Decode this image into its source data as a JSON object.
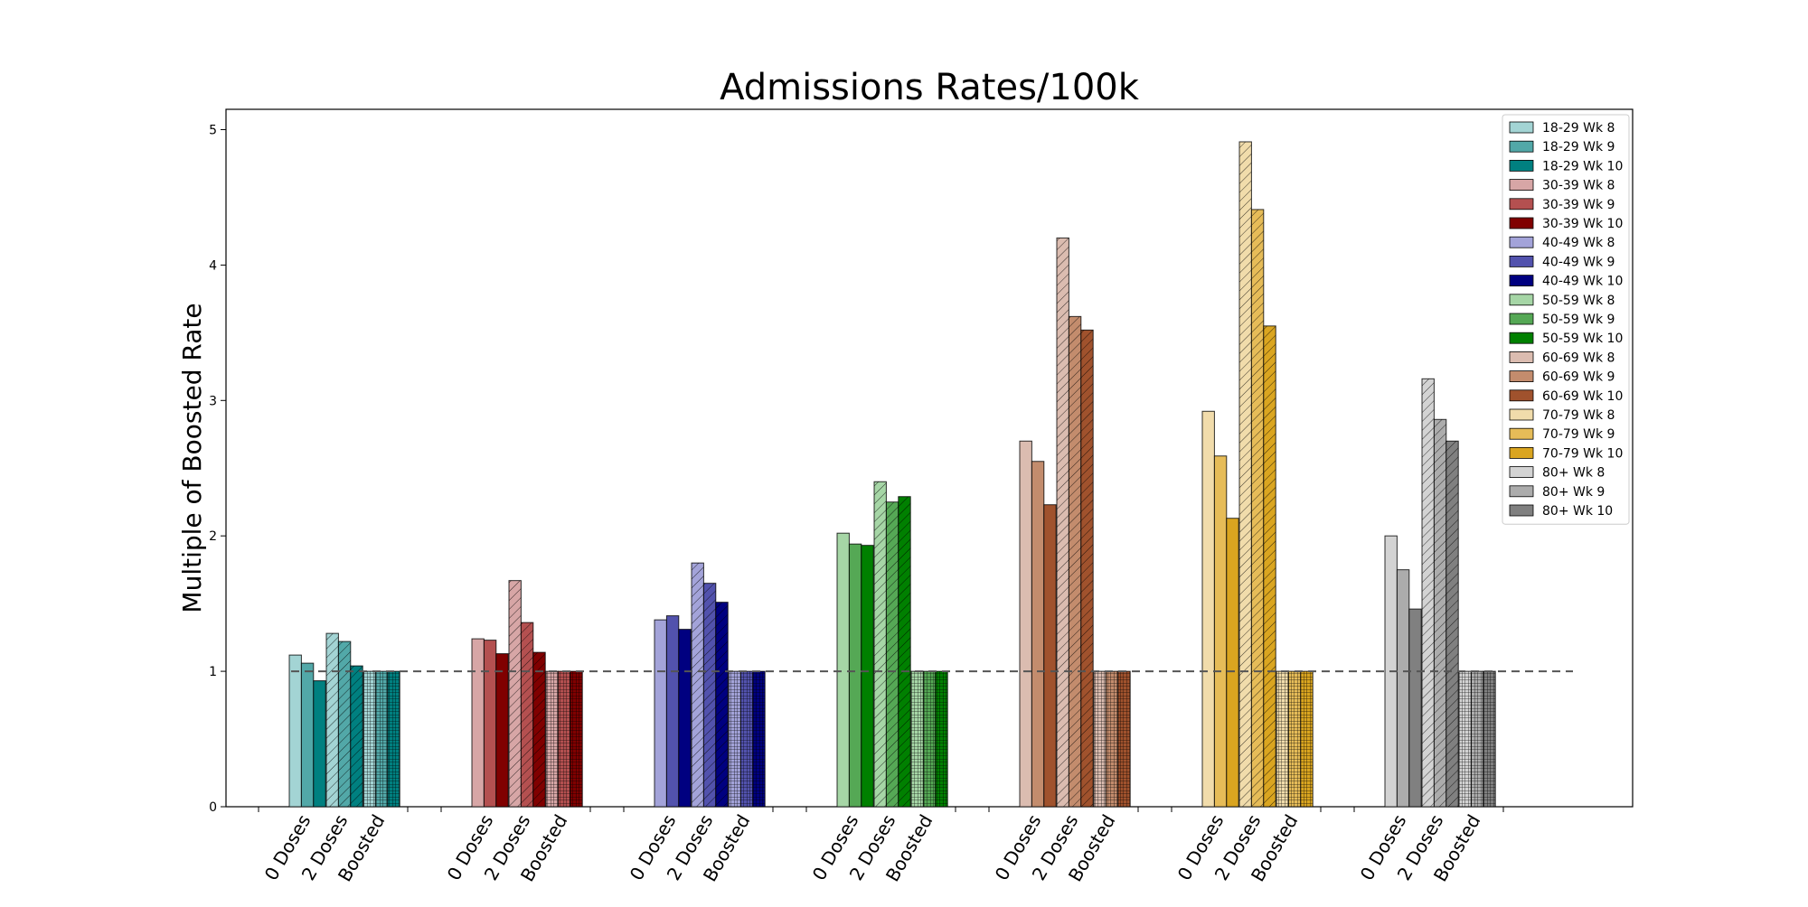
{
  "chart_data": {
    "type": "bar",
    "title": "Admissions Rates/100k",
    "xlabel": "",
    "ylabel": "Multiple of Boosted Rate",
    "ylim": [
      0,
      5.15
    ],
    "yticks": [
      0,
      1,
      2,
      3,
      4,
      5
    ],
    "reference_line": {
      "y": 1,
      "style": "dashed"
    },
    "legend_position": "top-right",
    "dose_categories": [
      "0 Doses",
      "2 Doses",
      "Boosted"
    ],
    "weeks": [
      "Wk 8",
      "Wk 9",
      "Wk 10"
    ],
    "groups": [
      {
        "age": "18-29",
        "colors": [
          "#a3d4d4",
          "#52a8a8",
          "#008080"
        ],
        "values": {
          "0 Doses": [
            1.12,
            1.06,
            0.93
          ],
          "2 Doses": [
            1.28,
            1.22,
            1.04
          ],
          "Boosted": [
            1.0,
            1.0,
            1.0
          ]
        }
      },
      {
        "age": "30-39",
        "colors": [
          "#d7a6a6",
          "#b45050",
          "#800000"
        ],
        "values": {
          "0 Doses": [
            1.24,
            1.23,
            1.13
          ],
          "2 Doses": [
            1.67,
            1.36,
            1.14
          ],
          "Boosted": [
            1.0,
            1.0,
            1.0
          ]
        }
      },
      {
        "age": "40-49",
        "colors": [
          "#a3a3d9",
          "#5252ad",
          "#000080"
        ],
        "values": {
          "0 Doses": [
            1.38,
            1.41,
            1.31
          ],
          "2 Doses": [
            1.8,
            1.65,
            1.51
          ],
          "Boosted": [
            1.0,
            1.0,
            1.0
          ]
        }
      },
      {
        "age": "50-59",
        "colors": [
          "#a6d6a6",
          "#55a855",
          "#008000"
        ],
        "values": {
          "0 Doses": [
            2.02,
            1.94,
            1.93
          ],
          "2 Doses": [
            2.4,
            2.25,
            2.29
          ],
          "Boosted": [
            1.0,
            1.0,
            1.0
          ]
        }
      },
      {
        "age": "60-69",
        "colors": [
          "#dbbcb0",
          "#c38c6d",
          "#a0522d"
        ],
        "values": {
          "0 Doses": [
            2.7,
            2.55,
            2.23
          ],
          "2 Doses": [
            4.2,
            3.62,
            3.52
          ],
          "Boosted": [
            1.0,
            1.0,
            1.0
          ]
        }
      },
      {
        "age": "70-79",
        "colors": [
          "#f1dcab",
          "#e6bc58",
          "#daa520"
        ],
        "values": {
          "0 Doses": [
            2.92,
            2.59,
            2.13
          ],
          "2 Doses": [
            4.91,
            4.41,
            3.55
          ],
          "Boosted": [
            1.0,
            1.0,
            1.0
          ]
        }
      },
      {
        "age": "80+",
        "colors": [
          "#d3d3d3",
          "#acacac",
          "#808080"
        ],
        "values": {
          "0 Doses": [
            2.0,
            1.75,
            1.46
          ],
          "2 Doses": [
            3.16,
            2.86,
            2.7
          ],
          "Boosted": [
            1.0,
            1.0,
            1.0
          ]
        }
      }
    ],
    "legend": [
      "18-29 Wk 8",
      "18-29 Wk 9",
      "18-29 Wk 10",
      "30-39 Wk 8",
      "30-39 Wk 9",
      "30-39 Wk 10",
      "40-49 Wk 8",
      "40-49 Wk 9",
      "40-49 Wk 10",
      "50-59 Wk 8",
      "50-59 Wk 9",
      "50-59 Wk 10",
      "60-69 Wk 8",
      "60-69 Wk 9",
      "60-69 Wk 10",
      "70-79 Wk 8",
      "70-79 Wk 9",
      "70-79 Wk 10",
      "80+ Wk 8",
      "80+ Wk 9",
      "80+ Wk 10"
    ]
  }
}
